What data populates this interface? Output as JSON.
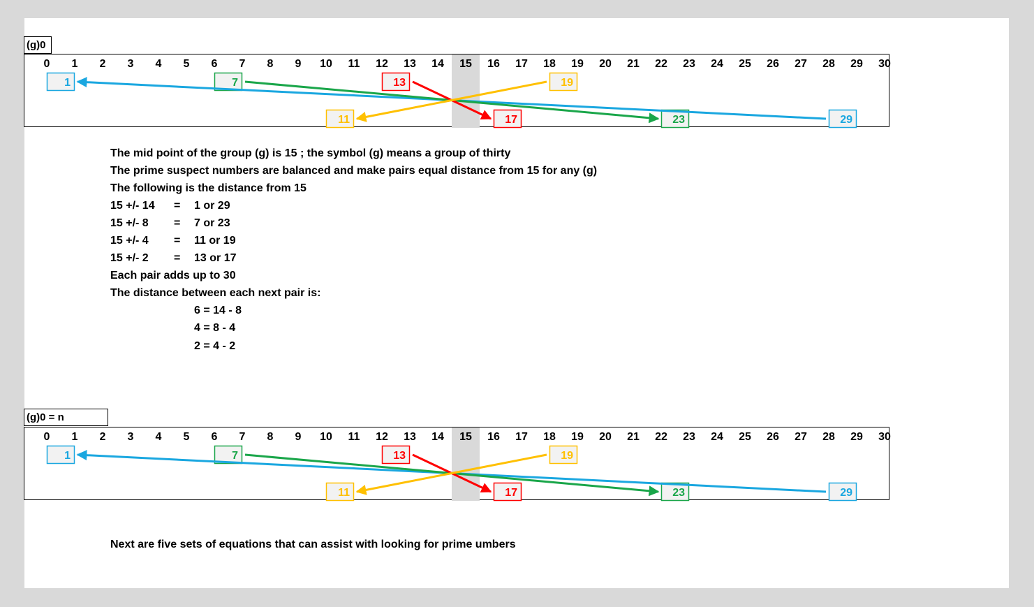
{
  "diagrams": [
    {
      "label": "(g)0",
      "midpoint": 15,
      "range": [
        0,
        30
      ],
      "ticks": [
        "0",
        "1",
        "2",
        "3",
        "4",
        "5",
        "6",
        "7",
        "8",
        "9",
        "10",
        "11",
        "12",
        "13",
        "14",
        "15",
        "16",
        "17",
        "18",
        "19",
        "20",
        "21",
        "22",
        "23",
        "24",
        "25",
        "26",
        "27",
        "28",
        "29",
        "30"
      ],
      "boxes": [
        {
          "value": 1,
          "text": "1",
          "row": "top",
          "color": "#1aa7e0"
        },
        {
          "value": 7,
          "text": "7",
          "row": "top",
          "color": "#1aa64a"
        },
        {
          "value": 13,
          "text": "13",
          "row": "top",
          "color": "#ff0000"
        },
        {
          "value": 19,
          "text": "19",
          "row": "top",
          "color": "#ffc000"
        },
        {
          "value": 11,
          "text": "11",
          "row": "bottom",
          "color": "#ffc000"
        },
        {
          "value": 17,
          "text": "17",
          "row": "bottom",
          "color": "#ff0000"
        },
        {
          "value": 23,
          "text": "23",
          "row": "bottom",
          "color": "#1aa64a"
        },
        {
          "value": 29,
          "text": "29",
          "row": "bottom",
          "color": "#1aa7e0"
        }
      ],
      "arrows": [
        {
          "from": 29,
          "to": 1,
          "color": "#1aa7e0"
        },
        {
          "from": 7,
          "to": 23,
          "color": "#1aa64a"
        },
        {
          "from": 13,
          "to": 17,
          "color": "#ff0000"
        },
        {
          "from": 19,
          "to": 11,
          "color": "#ffc000"
        }
      ]
    },
    {
      "label": "(g)0 = n",
      "midpoint": 15,
      "range": [
        0,
        30
      ],
      "ticks": [
        "0",
        "1",
        "2",
        "3",
        "4",
        "5",
        "6",
        "7",
        "8",
        "9",
        "10",
        "11",
        "12",
        "13",
        "14",
        "15",
        "16",
        "17",
        "18",
        "19",
        "20",
        "21",
        "22",
        "23",
        "24",
        "25",
        "26",
        "27",
        "28",
        "29",
        "30"
      ],
      "boxes": [
        {
          "value": 1,
          "text": "1",
          "row": "top",
          "color": "#1aa7e0"
        },
        {
          "value": 7,
          "text": "7",
          "row": "top",
          "color": "#1aa64a"
        },
        {
          "value": 13,
          "text": "13",
          "row": "top",
          "color": "#ff0000"
        },
        {
          "value": 19,
          "text": "19",
          "row": "top",
          "color": "#ffc000"
        },
        {
          "value": 11,
          "text": "11",
          "row": "bottom",
          "color": "#ffc000"
        },
        {
          "value": 17,
          "text": "17",
          "row": "bottom",
          "color": "#ff0000"
        },
        {
          "value": 23,
          "text": "23",
          "row": "bottom",
          "color": "#1aa64a"
        },
        {
          "value": 29,
          "text": "29",
          "row": "bottom",
          "color": "#1aa7e0"
        }
      ],
      "arrows": [
        {
          "from": 29,
          "to": 1,
          "color": "#1aa7e0"
        },
        {
          "from": 7,
          "to": 23,
          "color": "#1aa64a"
        },
        {
          "from": 13,
          "to": 17,
          "color": "#ff0000"
        },
        {
          "from": 19,
          "to": 11,
          "color": "#ffc000"
        }
      ]
    }
  ],
  "notes": {
    "line1": "The mid point of the group (g) is 15 ; the symbol (g) means a group of thirty",
    "line2": "The prime suspect numbers are balanced and make pairs equal distance from 15 for any (g)",
    "line3": "The following is the distance from 15",
    "eq1": {
      "left": "15 +/- 14",
      "eq": "=",
      "right": "1 or 29"
    },
    "eq2": {
      "left": "15 +/- 8",
      "eq": "=",
      "right": "7 or 23"
    },
    "eq3": {
      "left": "15 +/- 4",
      "eq": "=",
      "right": "11 or 19"
    },
    "eq4": {
      "left": "15 +/- 2",
      "eq": "=",
      "right": "13 or 17"
    },
    "line4": "Each pair adds up to 30",
    "line5": "The distance between each next pair is:",
    "diff1": "6 = 14 - 8",
    "diff2": "4 = 8 - 4",
    "diff3": "2 = 4 - 2",
    "footer": "Next are five sets of equations that can assist with looking for prime umbers"
  }
}
